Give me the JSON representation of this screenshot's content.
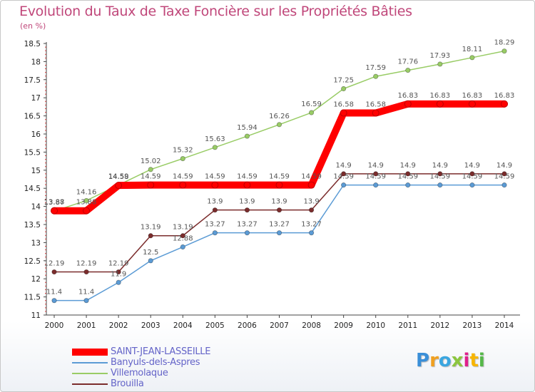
{
  "chart_data": {
    "type": "line",
    "title": "Evolution du Taux de Taxe Foncière sur les Propriétés Bâties",
    "subtitle": "(en %)",
    "xlabel": "",
    "ylabel": "(en %)",
    "x": [
      "2000",
      "2001",
      "2002",
      "2003",
      "2004",
      "2005",
      "2006",
      "2007",
      "2008",
      "2009",
      "2010",
      "2011",
      "2012",
      "2013",
      "2014"
    ],
    "ylim": [
      11,
      18.5
    ],
    "yticks": [
      "11",
      "11.5",
      "12",
      "12.5",
      "13",
      "13.5",
      "14",
      "14.5",
      "15",
      "15.5",
      "16",
      "16.5",
      "17",
      "17.5",
      "18",
      "18.5"
    ],
    "grid": false,
    "legend_position": "bottom-left",
    "series": [
      {
        "name": "SAINT-JEAN-LASSEILLE",
        "color": "#ff0000",
        "values": [
          13.88,
          13.88,
          14.58,
          14.59,
          14.59,
          14.59,
          14.59,
          14.59,
          14.59,
          16.58,
          16.58,
          16.83,
          16.83,
          16.83,
          16.83
        ],
        "labels": [
          "13.88",
          "13.88",
          "14.58",
          "14.59",
          "14.59",
          "14.59",
          "14.59",
          "14.59",
          "14.59",
          "16.58",
          "16.58",
          "16.83",
          "16.83",
          "16.83",
          "16.83"
        ]
      },
      {
        "name": "Banyuls-dels-Aspres",
        "color": "#5b9bd5",
        "values": [
          11.4,
          11.4,
          11.9,
          12.5,
          12.88,
          13.27,
          13.27,
          13.27,
          13.27,
          14.59,
          14.59,
          14.59,
          14.59,
          14.59,
          14.59
        ],
        "labels": [
          "11.4",
          "11.4",
          "11.9",
          "12.5",
          "12.88",
          "13.27",
          "13.27",
          "13.27",
          "13.27",
          "14.59",
          "14.59",
          "14.59",
          "14.59",
          "14.59",
          "14.59"
        ]
      },
      {
        "name": "Villemolaque",
        "color": "#99cc66",
        "values": [
          13.87,
          14.16,
          14.59,
          15.02,
          15.32,
          15.63,
          15.94,
          16.26,
          16.59,
          17.25,
          17.59,
          17.76,
          17.93,
          18.11,
          18.29
        ],
        "labels": [
          "13.87",
          "14.16",
          "14.59",
          "15.02",
          "15.32",
          "15.63",
          "15.94",
          "16.26",
          "16.59",
          "17.25",
          "17.59",
          "17.76",
          "17.93",
          "18.11",
          "18.29"
        ]
      },
      {
        "name": "Brouilla",
        "color": "#7b2c2c",
        "values": [
          12.19,
          12.19,
          12.19,
          13.19,
          13.19,
          13.9,
          13.9,
          13.9,
          13.9,
          14.9,
          14.9,
          14.9,
          14.9,
          14.9,
          14.9
        ],
        "labels": [
          "12.19",
          "12.19",
          "12.19",
          "13.19",
          "13.19",
          "13.9",
          "13.9",
          "13.9",
          "13.9",
          "14.9",
          "14.9",
          "14.9",
          "14.9",
          "14.9",
          "14.9"
        ]
      }
    ]
  },
  "logo": {
    "letters": [
      "P",
      "r",
      "o",
      "x",
      "i",
      "t",
      "i"
    ],
    "colors": [
      "#3a8fd8",
      "#f0a020",
      "#3aa6e0",
      "#8cc63f",
      "#e0208c",
      "#f7b500",
      "#55b848"
    ]
  }
}
